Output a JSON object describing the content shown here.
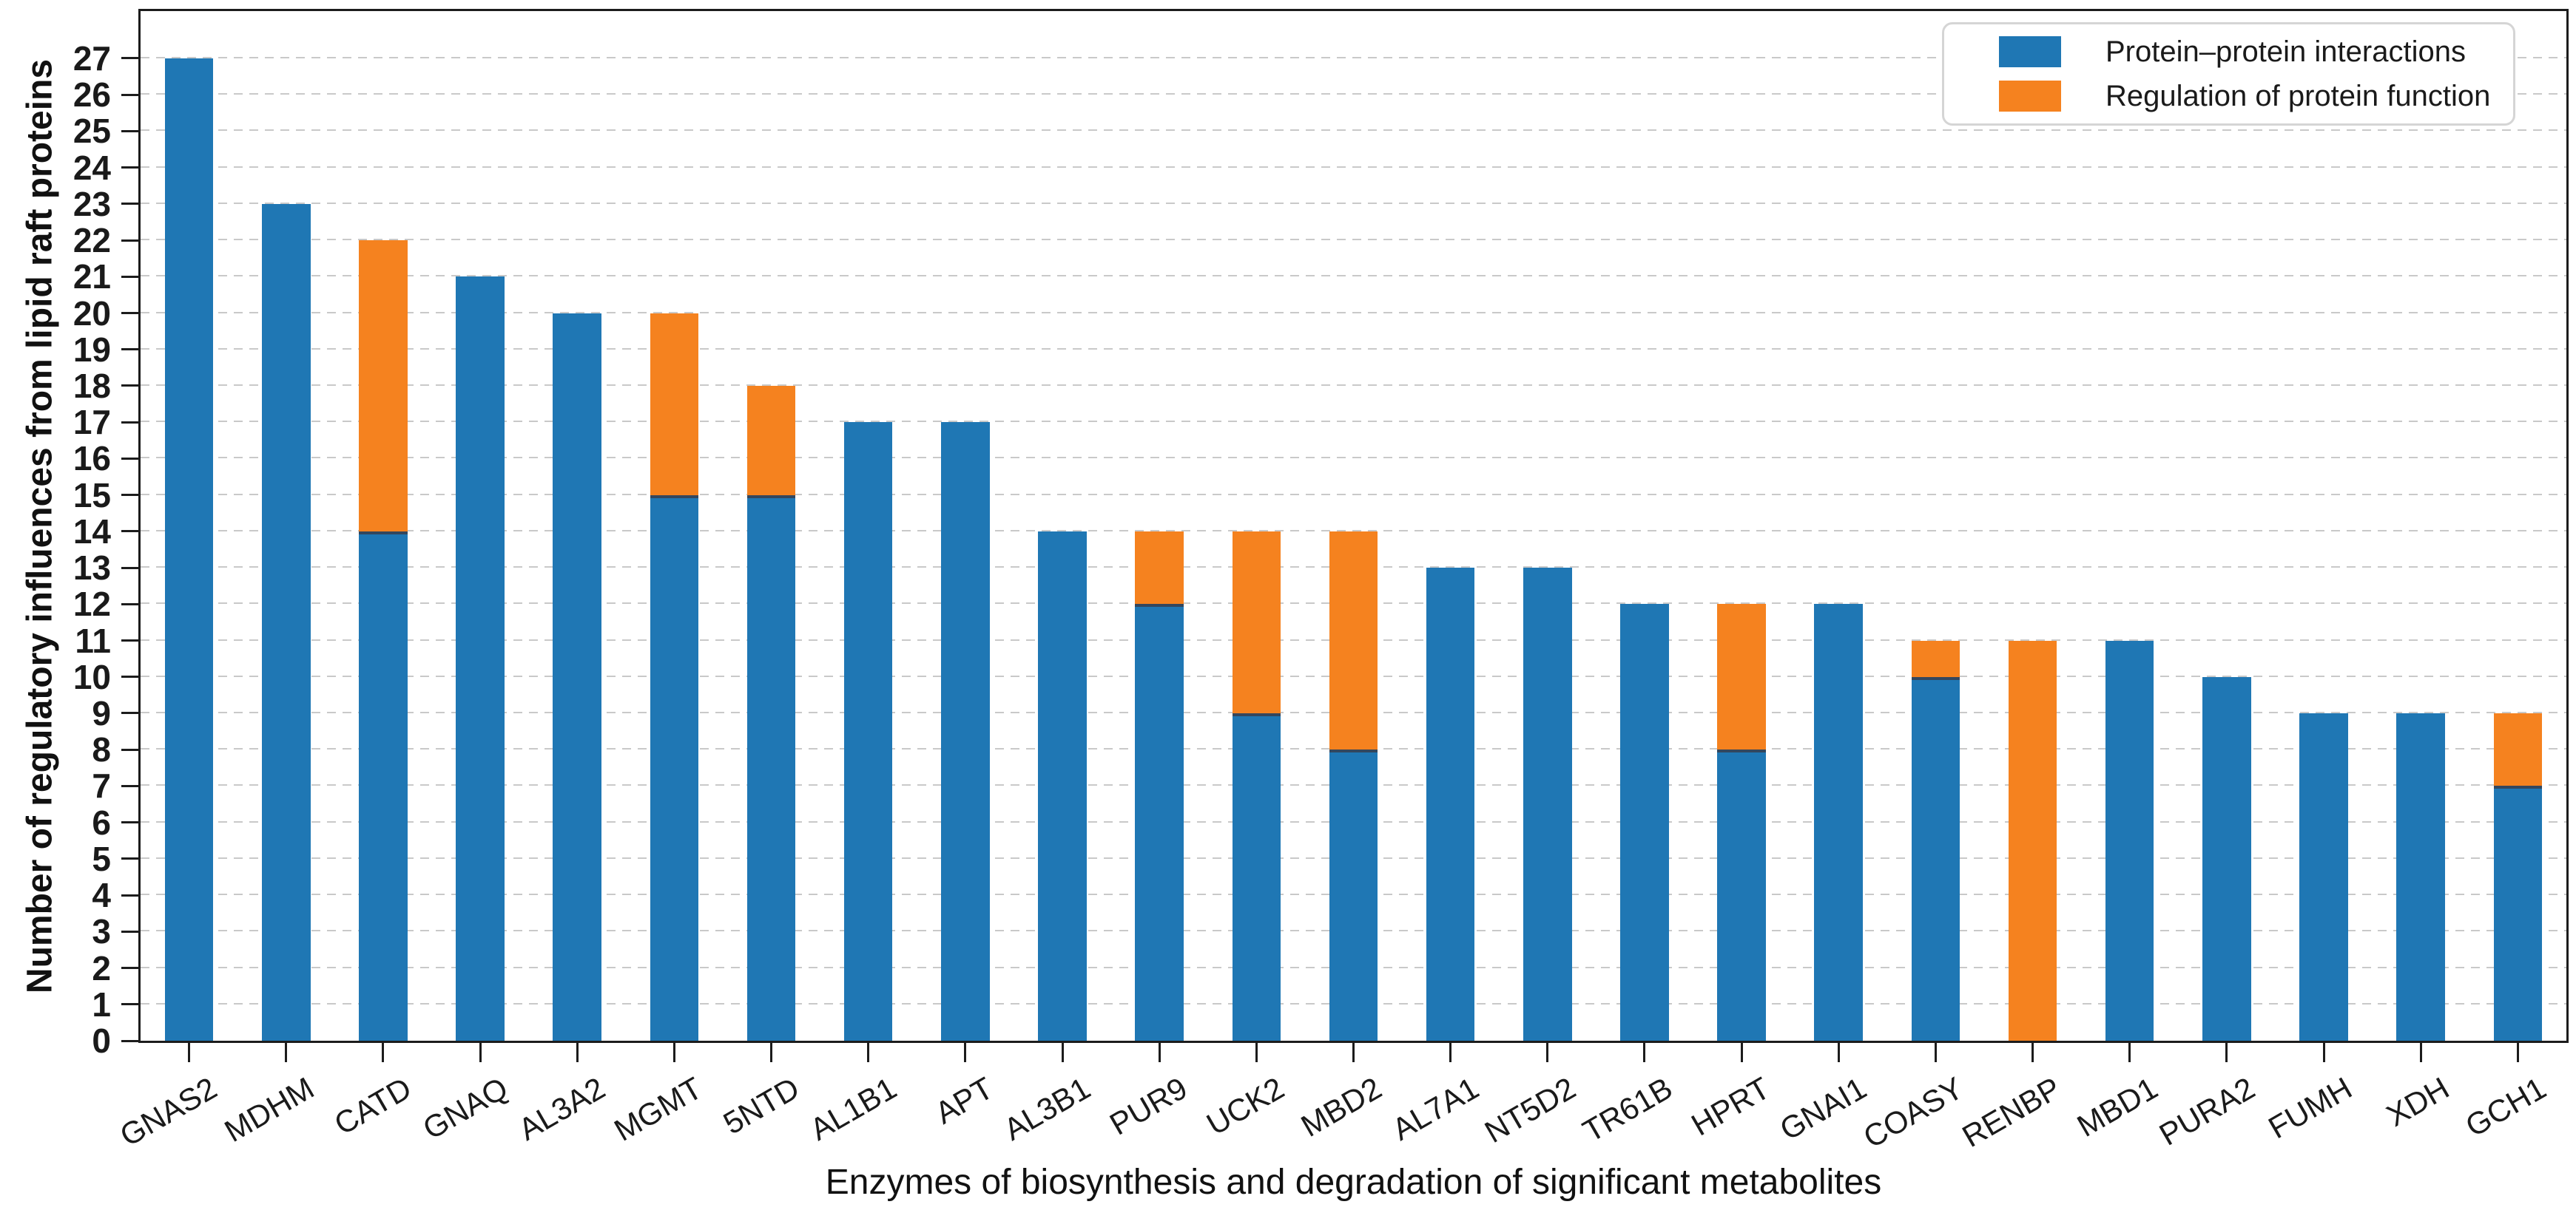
{
  "figure": {
    "ylabel": "Number of regulatory influences from lipid raft proteins",
    "xlabel": "Enzymes of biosynthesis and degradation of significant metabolites",
    "background": "#ffffff",
    "spine_color": "#1c1c1c",
    "gridline_color": "#c9c9c9"
  },
  "legend": {
    "position": "upper right",
    "items": [
      {
        "label": "Protein–protein interactions",
        "color": "#1f77b4"
      },
      {
        "label": "Regulation of protein function",
        "color": "#f5821f"
      }
    ]
  },
  "chart_data": {
    "type": "bar",
    "stacked": true,
    "title": "",
    "xlabel": "Enzymes of biosynthesis and degradation of significant metabolites",
    "ylabel": "Number of regulatory influences from lipid raft proteins",
    "categories": [
      "GNAS2",
      "MDHM",
      "CATD",
      "GNAQ",
      "AL3A2",
      "MGMT",
      "5NTD",
      "AL1B1",
      "APT",
      "AL3B1",
      "PUR9",
      "UCK2",
      "MBD2",
      "AL7A1",
      "NT5D2",
      "TR61B",
      "HPRT",
      "GNAI1",
      "COASY",
      "RENBP",
      "MBD1",
      "PURA2",
      "FUMH",
      "XDH",
      "GCH1"
    ],
    "series": [
      {
        "name": "Protein–protein interactions",
        "color": "#1f77b4",
        "values": [
          27,
          23,
          14,
          21,
          20,
          15,
          15,
          17,
          17,
          14,
          12,
          9,
          8,
          13,
          13,
          12,
          8,
          12,
          10,
          0,
          11,
          10,
          9,
          9,
          7
        ]
      },
      {
        "name": "Regulation of protein function",
        "color": "#f5821f",
        "values": [
          0,
          0,
          8,
          0,
          0,
          5,
          3,
          0,
          0,
          0,
          2,
          5,
          6,
          0,
          0,
          0,
          4,
          0,
          1,
          11,
          0,
          0,
          0,
          0,
          2
        ]
      }
    ],
    "totals": [
      27,
      23,
      22,
      21,
      20,
      20,
      18,
      17,
      17,
      14,
      14,
      14,
      14,
      13,
      13,
      12,
      12,
      12,
      11,
      11,
      11,
      10,
      9,
      9,
      9
    ],
    "ylim": [
      0,
      28.3
    ],
    "yticks": [
      0,
      1,
      2,
      3,
      4,
      5,
      6,
      7,
      8,
      9,
      10,
      11,
      12,
      13,
      14,
      15,
      16,
      17,
      18,
      19,
      20,
      21,
      22,
      23,
      24,
      25,
      26,
      27
    ],
    "grid": true,
    "grid_style": "dashed",
    "legend_position": "upper right",
    "bar_segment_boundary_color": "#33475e"
  }
}
